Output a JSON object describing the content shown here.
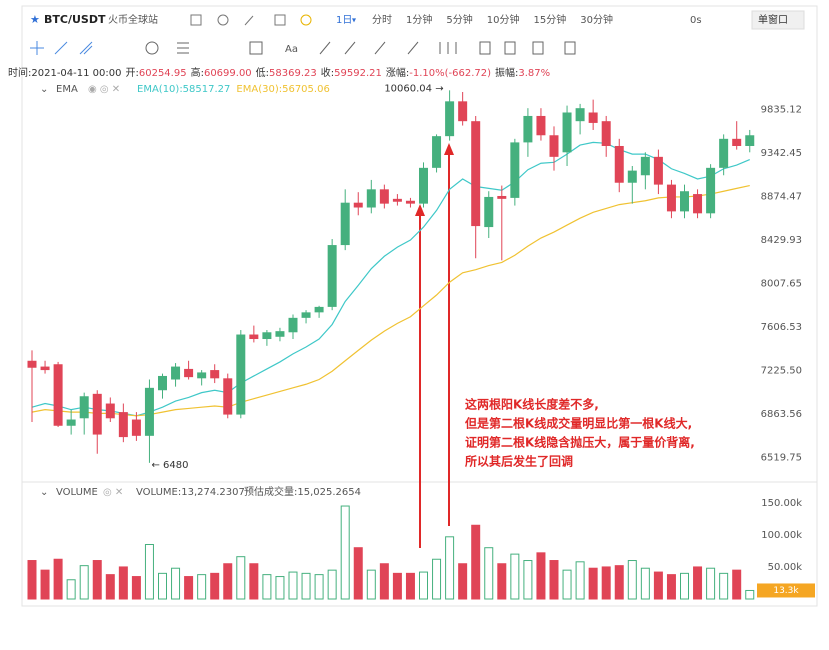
{
  "header": {
    "symbol": "BTC/USDT",
    "exchange": "火币全球站",
    "period": "1日",
    "intervals": [
      "分时",
      "1分钟",
      "5分钟",
      "10分钟",
      "15分钟",
      "30分钟"
    ],
    "timer": "0s",
    "window": "单窗口",
    "tool_text": "Aa"
  },
  "info": {
    "time": "时间:2021-04-11 00:00",
    "items": [
      {
        "label": "开:",
        "value": "60254.95"
      },
      {
        "label": "高:",
        "value": "60699.00"
      },
      {
        "label": "低:",
        "value": "58369.23"
      },
      {
        "label": "收:",
        "value": "59592.21"
      },
      {
        "label": "涨幅:",
        "value": "-1.10%(-662.72)"
      },
      {
        "label": "振幅:",
        "value": "3.87%"
      }
    ]
  },
  "chart_data": [
    {
      "type": "candlestick",
      "indicator": "EMA",
      "log_scale": true,
      "up_color": "#45b07e",
      "down_color": "#e04456",
      "ylim": [
        6350,
        10040
      ],
      "yticks": [
        9835.12,
        9342.45,
        8874.47,
        8429.93,
        8007.65,
        7606.53,
        {
          "value": 7225.5,
          "label": "7225.50"
        },
        6863.56,
        6519.75
      ],
      "open": [
        7310,
        7260,
        7280,
        6770,
        6830,
        7030,
        6950,
        6880,
        6820,
        6690,
        7060,
        7150,
        7240,
        7160,
        7230,
        7160,
        6860,
        7540,
        7500,
        7520,
        7560,
        7690,
        7740,
        7790,
        8380,
        8810,
        8760,
        8950,
        8850,
        8830,
        8800,
        9180,
        9530,
        9930,
        9700,
        8560,
        8880,
        8860,
        9460,
        9760,
        9540,
        9350,
        9700,
        9800,
        9700,
        9420,
        9020,
        9100,
        9300,
        9000,
        8720,
        8900,
        8700,
        9180,
        9500,
        9420
      ],
      "high": [
        7400,
        7310,
        7300,
        6900,
        7040,
        7060,
        7000,
        6950,
        6880,
        7150,
        7200,
        7290,
        7310,
        7230,
        7280,
        7200,
        7580,
        7620,
        7580,
        7600,
        7720,
        7760,
        7800,
        8440,
        8950,
        8920,
        9050,
        9000,
        8900,
        8860,
        9240,
        9550,
        10060,
        10040,
        9760,
        8930,
        8990,
        9500,
        9850,
        9850,
        9640,
        9880,
        9900,
        9950,
        9760,
        9500,
        9200,
        9350,
        9380,
        9050,
        9000,
        8950,
        9220,
        9550,
        9700,
        9600
      ],
      "low": [
        6800,
        7200,
        6760,
        6700,
        6700,
        6550,
        6800,
        6640,
        6650,
        6480,
        6990,
        7090,
        7150,
        7100,
        7120,
        6830,
        6830,
        7470,
        7440,
        7480,
        7500,
        7640,
        7690,
        7760,
        8330,
        8680,
        8700,
        8750,
        8780,
        8760,
        8760,
        9130,
        9480,
        9650,
        8250,
        8450,
        8230,
        8780,
        9300,
        9480,
        9150,
        9200,
        9550,
        9600,
        9300,
        8920,
        8800,
        8950,
        8900,
        8650,
        8650,
        8650,
        8650,
        9100,
        9380,
        9350
      ],
      "close": [
        7250,
        7230,
        6770,
        6820,
        7010,
        6700,
        6830,
        6680,
        6690,
        7080,
        7180,
        7260,
        7170,
        7210,
        7160,
        6860,
        7540,
        7500,
        7560,
        7570,
        7690,
        7740,
        7790,
        8380,
        8810,
        8760,
        8950,
        8800,
        8820,
        8800,
        9180,
        9530,
        9930,
        9700,
        8570,
        8870,
        8850,
        9460,
        9760,
        9540,
        9300,
        9800,
        9850,
        9680,
        9420,
        9020,
        9150,
        9300,
        9000,
        8720,
        8930,
        8700,
        9180,
        9500,
        9420,
        9540
      ],
      "lines": [
        {
          "name": "EMA(10):58517.27",
          "color": "#3fc8c8",
          "values": [
            6920,
            6950,
            6930,
            6900,
            6920,
            6900,
            6890,
            6870,
            6850,
            6880,
            6920,
            6970,
            7000,
            7040,
            7060,
            7040,
            7120,
            7180,
            7240,
            7300,
            7370,
            7430,
            7500,
            7630,
            7840,
            7990,
            8150,
            8270,
            8360,
            8430,
            8560,
            8730,
            8950,
            9060,
            8980,
            8960,
            8940,
            9030,
            9160,
            9230,
            9240,
            9330,
            9430,
            9460,
            9450,
            9380,
            9330,
            9330,
            9270,
            9170,
            9120,
            9060,
            9090,
            9170,
            9210,
            9270
          ]
        },
        {
          "name": "EMA(30):56705.06",
          "color": "#f0c232",
          "values": [
            6880,
            6900,
            6890,
            6880,
            6880,
            6870,
            6870,
            6860,
            6850,
            6860,
            6880,
            6900,
            6910,
            6920,
            6930,
            6920,
            6960,
            6990,
            7020,
            7050,
            7080,
            7110,
            7150,
            7220,
            7310,
            7400,
            7490,
            7570,
            7640,
            7700,
            7800,
            7900,
            8020,
            8110,
            8140,
            8180,
            8210,
            8280,
            8370,
            8450,
            8510,
            8580,
            8650,
            8710,
            8750,
            8790,
            8810,
            8830,
            8860,
            8870,
            8870,
            8880,
            8900,
            8930,
            8960,
            8990
          ]
        }
      ],
      "high_label": "10060.04 →",
      "low_label": "← 6480",
      "annotation": [
        "这两根阳K线长度差不多,",
        "但是第二根K线成交量明显比第一根K线大,",
        "证明第二根K线隐含抛压大，属于量价背离,",
        "所以其后发生了回调"
      ]
    },
    {
      "type": "volume",
      "title": "VOLUME",
      "readout": "VOLUME:13,274.2307",
      "estimate": "预估成交量:15,025.2654",
      "ylim": [
        0,
        170
      ],
      "yticks": [
        {
          "value": 150,
          "label": "150.00k"
        },
        {
          "value": 100,
          "label": "100.00k"
        },
        {
          "value": 50,
          "label": "50.00k"
        }
      ],
      "values": [
        60,
        45,
        62,
        30,
        52,
        60,
        38,
        50,
        35,
        85,
        40,
        48,
        35,
        38,
        40,
        55,
        66,
        55,
        38,
        35,
        42,
        40,
        38,
        45,
        145,
        80,
        45,
        55,
        40,
        40,
        42,
        62,
        97,
        55,
        115,
        80,
        55,
        70,
        60,
        72,
        60,
        45,
        58,
        48,
        50,
        52,
        60,
        48,
        42,
        38,
        40,
        50,
        48,
        40,
        45,
        13.3
      ],
      "last_label": "13.3k"
    }
  ]
}
